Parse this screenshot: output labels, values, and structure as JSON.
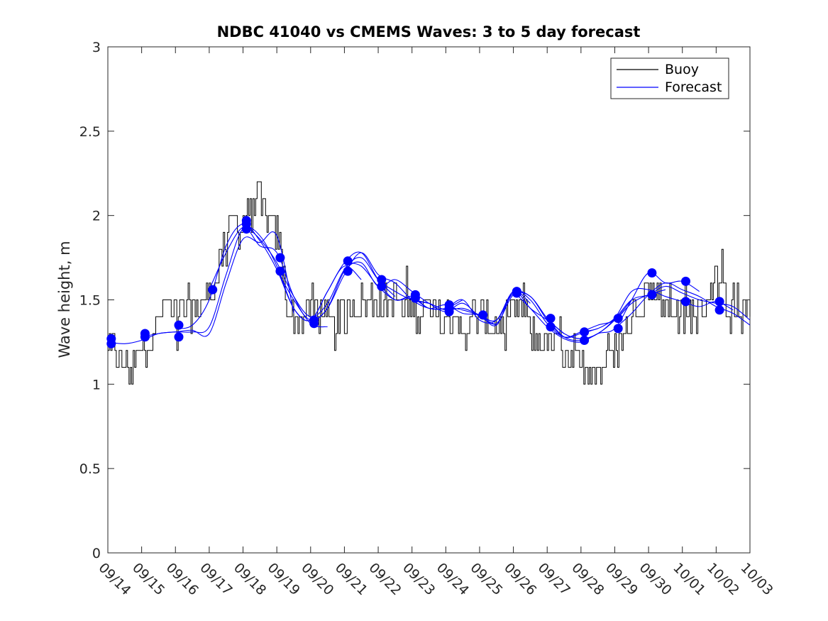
{
  "chart_data": {
    "type": "line",
    "title": "NDBC 41040 vs CMEMS Waves: 3 to 5 day forecast",
    "xlabel": "",
    "ylabel": "Wave height, m",
    "ylim": [
      0,
      3
    ],
    "yticks": [
      "0",
      "0.5",
      "1",
      "1.5",
      "2",
      "2.5",
      "3"
    ],
    "xlim": [
      0,
      19
    ],
    "xtick_labels": [
      "09/14",
      "09/15",
      "09/16",
      "09/17",
      "09/18",
      "09/19",
      "09/20",
      "09/21",
      "09/22",
      "09/23",
      "09/24",
      "09/25",
      "09/26",
      "09/27",
      "09/28",
      "09/29",
      "09/30",
      "10/01",
      "10/02",
      "10/03"
    ],
    "grid": false,
    "legend": {
      "location": "top-right",
      "entries": [
        {
          "label": "Buoy",
          "color": "#000000"
        },
        {
          "label": "Forecast",
          "color": "#0000ff"
        }
      ]
    },
    "buoy": {
      "name": "Buoy",
      "color": "#000000",
      "anchor_x": [
        0,
        0.2,
        0.5,
        0.8,
        1.0,
        1.3,
        1.5,
        1.8,
        2.0,
        2.3,
        2.6,
        2.8,
        3.0,
        3.3,
        3.5,
        3.7,
        4.0,
        4.2,
        4.4,
        4.6,
        4.8,
        5.0,
        5.2,
        5.4,
        5.6,
        5.8,
        6.0,
        6.2,
        6.5,
        6.8,
        7.0,
        7.2,
        7.5,
        7.8,
        8.0,
        8.2,
        8.5,
        8.8,
        9.0,
        9.3,
        9.6,
        9.9,
        10.0,
        10.3,
        10.6,
        10.9,
        11.2,
        11.5,
        11.8,
        12.0,
        12.3,
        12.6,
        12.8,
        13.0,
        13.3,
        13.6,
        13.9,
        14.0,
        14.3,
        14.6,
        14.9,
        15.0,
        15.3,
        15.6,
        15.9,
        16.0,
        16.3,
        16.5,
        16.7,
        17.0,
        17.3,
        17.6,
        17.8,
        18.0,
        18.3,
        18.6,
        18.9,
        19.0
      ],
      "anchor_y": [
        1.15,
        1.2,
        1.12,
        1.12,
        1.2,
        1.3,
        1.4,
        1.5,
        1.45,
        1.45,
        1.45,
        1.5,
        1.5,
        1.7,
        1.9,
        1.95,
        1.95,
        2.0,
        2.1,
        2.0,
        1.95,
        1.9,
        1.6,
        1.4,
        1.35,
        1.4,
        1.45,
        1.45,
        1.35,
        1.35,
        1.4,
        1.45,
        1.5,
        1.5,
        1.5,
        1.45,
        1.5,
        1.45,
        1.45,
        1.45,
        1.4,
        1.35,
        1.4,
        1.35,
        1.35,
        1.4,
        1.35,
        1.35,
        1.35,
        1.4,
        1.45,
        1.3,
        1.25,
        1.25,
        1.25,
        1.2,
        1.15,
        1.1,
        1.1,
        1.1,
        1.15,
        1.2,
        1.3,
        1.45,
        1.55,
        1.6,
        1.55,
        1.5,
        1.45,
        1.4,
        1.4,
        1.45,
        1.55,
        1.6,
        1.5,
        1.45,
        1.45,
        1.45
      ]
    },
    "forecasts": [
      {
        "name": "Forecast",
        "x": [
          0,
          0.5,
          1,
          1.5,
          2,
          2.5,
          3,
          3.5,
          4,
          4.5,
          5,
          5.5
        ],
        "y": [
          1.25,
          1.24,
          1.26,
          1.3,
          1.31,
          1.32,
          1.3,
          1.6,
          1.86,
          1.84,
          1.88,
          1.42
        ]
      },
      {
        "name": "Forecast",
        "x": [
          1,
          1.5,
          2,
          2.5,
          3,
          3.5,
          4,
          4.5,
          5,
          5.5,
          6,
          6.5
        ],
        "y": [
          1.28,
          1.3,
          1.31,
          1.31,
          1.34,
          1.65,
          1.92,
          1.82,
          1.78,
          1.52,
          1.36,
          1.34
        ]
      },
      {
        "name": "Forecast",
        "x": [
          2,
          2.5,
          3,
          3.5,
          4,
          4.5,
          5,
          5.5,
          6,
          6.5,
          7,
          7.5
        ],
        "y": [
          1.33,
          1.35,
          1.5,
          1.82,
          1.95,
          1.85,
          1.68,
          1.45,
          1.38,
          1.55,
          1.7,
          1.62
        ]
      },
      {
        "name": "Forecast",
        "x": [
          3,
          3.5,
          4,
          4.5,
          5,
          5.5,
          6,
          6.5,
          7,
          7.5,
          8,
          8.5
        ],
        "y": [
          1.56,
          1.78,
          1.93,
          1.88,
          1.7,
          1.45,
          1.38,
          1.55,
          1.72,
          1.78,
          1.62,
          1.52
        ]
      },
      {
        "name": "Forecast",
        "x": [
          4,
          4.5,
          5,
          5.5,
          6,
          6.5,
          7,
          7.5,
          8,
          8.5,
          9,
          9.5
        ],
        "y": [
          1.95,
          1.86,
          1.72,
          1.52,
          1.4,
          1.48,
          1.68,
          1.75,
          1.62,
          1.55,
          1.5,
          1.48
        ]
      },
      {
        "name": "Forecast",
        "x": [
          5,
          5.5,
          6,
          6.5,
          7,
          7.5,
          8,
          8.5,
          9,
          9.5,
          10,
          10.5
        ],
        "y": [
          1.68,
          1.5,
          1.38,
          1.45,
          1.65,
          1.78,
          1.65,
          1.6,
          1.5,
          1.45,
          1.45,
          1.5
        ]
      },
      {
        "name": "Forecast",
        "x": [
          6,
          6.5,
          7,
          7.5,
          8,
          8.5,
          9,
          9.5,
          10,
          10.5,
          11,
          11.5
        ],
        "y": [
          1.36,
          1.45,
          1.67,
          1.72,
          1.58,
          1.62,
          1.55,
          1.48,
          1.43,
          1.48,
          1.4,
          1.35
        ]
      },
      {
        "name": "Forecast",
        "x": [
          7,
          7.5,
          8,
          8.5,
          9,
          9.5,
          10,
          10.5,
          11,
          11.5,
          12,
          12.5
        ],
        "y": [
          1.72,
          1.7,
          1.58,
          1.5,
          1.51,
          1.45,
          1.45,
          1.5,
          1.38,
          1.38,
          1.55,
          1.48
        ]
      },
      {
        "name": "Forecast",
        "x": [
          8,
          8.5,
          9,
          9.5,
          10,
          10.5,
          11,
          11.5,
          12,
          12.5,
          13,
          13.5
        ],
        "y": [
          1.6,
          1.5,
          1.52,
          1.45,
          1.47,
          1.42,
          1.41,
          1.35,
          1.55,
          1.45,
          1.38,
          1.3
        ]
      },
      {
        "name": "Forecast",
        "x": [
          9,
          9.5,
          10,
          10.5,
          11,
          11.5,
          12,
          12.5,
          13,
          13.5,
          14,
          14.5
        ],
        "y": [
          1.5,
          1.48,
          1.44,
          1.45,
          1.41,
          1.36,
          1.53,
          1.52,
          1.38,
          1.28,
          1.3,
          1.33
        ]
      },
      {
        "name": "Forecast",
        "x": [
          10,
          10.5,
          11,
          11.5,
          12,
          12.5,
          13,
          13.5,
          14,
          14.5,
          15,
          15.5
        ],
        "y": [
          1.46,
          1.44,
          1.41,
          1.38,
          1.54,
          1.52,
          1.39,
          1.28,
          1.26,
          1.3,
          1.38,
          1.5
        ]
      },
      {
        "name": "Forecast",
        "x": [
          11,
          11.5,
          12,
          12.5,
          13,
          13.5,
          14,
          14.5,
          15,
          15.5,
          16,
          16.5
        ],
        "y": [
          1.41,
          1.38,
          1.55,
          1.5,
          1.36,
          1.28,
          1.31,
          1.35,
          1.38,
          1.48,
          1.53,
          1.56
        ]
      },
      {
        "name": "Forecast",
        "x": [
          12,
          12.5,
          13,
          13.5,
          14,
          14.5,
          15,
          15.5,
          16,
          16.5,
          17,
          17.5
        ],
        "y": [
          1.55,
          1.45,
          1.34,
          1.27,
          1.25,
          1.3,
          1.33,
          1.5,
          1.66,
          1.6,
          1.61,
          1.55
        ]
      },
      {
        "name": "Forecast",
        "x": [
          13,
          13.5,
          14,
          14.5,
          15,
          15.5,
          16,
          16.5,
          17,
          17.5,
          18,
          18.5
        ],
        "y": [
          1.39,
          1.3,
          1.27,
          1.3,
          1.39,
          1.55,
          1.56,
          1.52,
          1.49,
          1.46,
          1.49,
          1.44
        ]
      },
      {
        "name": "Forecast",
        "x": [
          14,
          14.5,
          15,
          15.5,
          16,
          16.5,
          17,
          17.5,
          18,
          18.5,
          19
        ],
        "y": [
          1.31,
          1.33,
          1.39,
          1.5,
          1.53,
          1.58,
          1.54,
          1.5,
          1.48,
          1.46,
          1.38
        ]
      },
      {
        "name": "Forecast",
        "x": [
          15,
          15.5,
          16,
          16.5,
          17,
          17.5,
          18,
          18.5,
          19
        ],
        "y": [
          1.33,
          1.42,
          1.53,
          1.6,
          1.56,
          1.52,
          1.46,
          1.42,
          1.35
        ]
      }
    ],
    "forecast_color": "#0000ff",
    "markers": {
      "x": [
        0.1,
        0.1,
        1.1,
        1.1,
        2.1,
        2.1,
        3.1,
        4.1,
        4.1,
        4.1,
        5.1,
        5.1,
        6.1,
        6.1,
        7.1,
        7.1,
        8.1,
        8.1,
        9.1,
        9.1,
        10.1,
        10.1,
        10.1,
        11.1,
        12.1,
        12.1,
        13.1,
        13.1,
        14.1,
        14.1,
        15.1,
        15.1,
        16.1,
        16.1,
        17.1,
        17.1,
        18.1,
        18.1
      ],
      "y": [
        1.27,
        1.24,
        1.3,
        1.28,
        1.35,
        1.28,
        1.56,
        1.97,
        1.95,
        1.92,
        1.75,
        1.67,
        1.38,
        1.36,
        1.73,
        1.67,
        1.62,
        1.58,
        1.53,
        1.51,
        1.47,
        1.45,
        1.43,
        1.41,
        1.55,
        1.54,
        1.39,
        1.34,
        1.31,
        1.26,
        1.39,
        1.33,
        1.66,
        1.53,
        1.61,
        1.49,
        1.49,
        1.44
      ]
    }
  }
}
